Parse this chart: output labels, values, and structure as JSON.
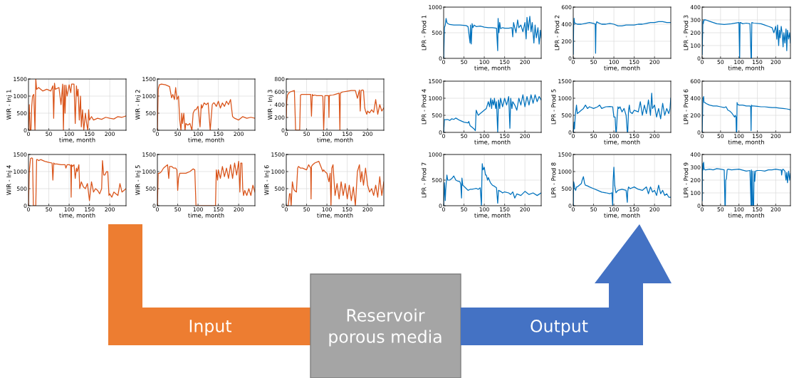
{
  "chart_data": [
    {
      "type": "line",
      "ylabel": "WIR - Inj 1",
      "xlabel": "time, month",
      "xlim": [
        0,
        240
      ],
      "xticks": [
        0,
        50,
        100,
        150,
        200
      ],
      "ylim": [
        0,
        1500
      ],
      "yticks": [
        0,
        500,
        1000,
        1500
      ],
      "grid": true,
      "x": [
        0,
        2,
        4,
        6,
        8,
        10,
        13,
        16,
        18,
        20,
        25,
        35,
        45,
        55,
        60,
        62,
        64,
        66,
        75,
        80,
        84,
        86,
        88,
        90,
        92,
        95,
        100,
        104,
        106,
        108,
        112,
        115,
        118,
        120,
        122,
        125,
        128,
        130,
        133,
        136,
        140,
        143,
        146,
        148,
        150,
        155,
        160,
        170,
        180,
        190,
        200,
        210,
        220,
        230,
        240
      ],
      "series": [
        {
          "color": "#d95319",
          "values": [
            0,
            750,
            0,
            0,
            700,
            1000,
            1050,
            0,
            1500,
            1200,
            1250,
            1150,
            1200,
            1150,
            1300,
            350,
            1380,
            1200,
            1250,
            750,
            1350,
            0,
            1320,
            500,
            1320,
            1000,
            1330,
            1100,
            1350,
            1350,
            1350,
            200,
            1300,
            1000,
            1200,
            300,
            1000,
            100,
            600,
            0,
            500,
            200,
            0,
            600,
            300,
            400,
            300,
            350,
            320,
            380,
            350,
            330,
            400,
            380,
            420
          ]
        }
      ]
    },
    {
      "type": "line",
      "ylabel": "WIR - Inj 2",
      "xlabel": "time, month",
      "xlim": [
        0,
        240
      ],
      "xticks": [
        0,
        50,
        100,
        150,
        200
      ],
      "ylim": [
        0,
        1500
      ],
      "yticks": [
        0,
        500,
        1000,
        1500
      ],
      "grid": true,
      "x": [
        0,
        2,
        5,
        10,
        20,
        30,
        35,
        38,
        42,
        45,
        48,
        52,
        55,
        58,
        60,
        62,
        65,
        68,
        70,
        75,
        80,
        85,
        88,
        90,
        92,
        95,
        100,
        105,
        108,
        110,
        115,
        120,
        125,
        130,
        135,
        138,
        140,
        145,
        150,
        155,
        160,
        165,
        170,
        175,
        180,
        185,
        190,
        200,
        210,
        220,
        230,
        240
      ],
      "series": [
        {
          "color": "#d95319",
          "values": [
            0,
            1200,
            1330,
            1350,
            1330,
            1280,
            950,
            1050,
            900,
            1250,
            900,
            1000,
            300,
            0,
            500,
            200,
            500,
            0,
            200,
            150,
            200,
            0,
            500,
            550,
            600,
            600,
            700,
            100,
            750,
            650,
            800,
            750,
            800,
            0,
            750,
            800,
            800,
            700,
            850,
            650,
            800,
            700,
            850,
            750,
            900,
            400,
            350,
            300,
            400,
            350,
            380,
            350
          ]
        }
      ]
    },
    {
      "type": "line",
      "ylabel": "WIR - Inj 3",
      "xlabel": "time, month",
      "xlim": [
        0,
        240
      ],
      "xticks": [
        0,
        50,
        100,
        150,
        200
      ],
      "ylim": [
        0,
        800
      ],
      "yticks": [
        0,
        200,
        400,
        600,
        800
      ],
      "grid": true,
      "x": [
        0,
        1,
        3,
        6,
        10,
        15,
        20,
        23,
        25,
        27,
        33,
        35,
        38,
        45,
        50,
        55,
        60,
        62,
        64,
        66,
        70,
        75,
        80,
        88,
        90,
        92,
        95,
        100,
        104,
        105,
        106,
        108,
        115,
        120,
        130,
        132,
        133,
        135,
        140,
        150,
        160,
        170,
        175,
        180,
        182,
        184,
        188,
        190,
        193,
        195,
        198,
        200,
        205,
        210,
        215,
        220,
        225,
        230,
        235,
        240
      ],
      "series": [
        {
          "color": "#d95319",
          "values": [
            200,
            450,
            550,
            580,
            600,
            610,
            620,
            0,
            0,
            0,
            0,
            550,
            560,
            560,
            560,
            560,
            560,
            220,
            560,
            540,
            550,
            540,
            540,
            540,
            530,
            0,
            540,
            540,
            540,
            200,
            540,
            545,
            550,
            560,
            580,
            0,
            570,
            590,
            600,
            610,
            620,
            620,
            500,
            630,
            300,
            620,
            630,
            620,
            350,
            300,
            250,
            300,
            270,
            320,
            280,
            480,
            250,
            400,
            300,
            350
          ]
        }
      ]
    },
    {
      "type": "line",
      "ylabel": "WIR - Inj 4",
      "xlabel": "time, month",
      "xlim": [
        0,
        240
      ],
      "xticks": [
        0,
        50,
        100,
        150,
        200
      ],
      "ylim": [
        0,
        1500
      ],
      "yticks": [
        0,
        500,
        1000,
        1500
      ],
      "grid": true,
      "x": [
        0,
        2,
        5,
        8,
        10,
        12,
        15,
        18,
        20,
        22,
        25,
        30,
        40,
        50,
        58,
        60,
        62,
        64,
        70,
        80,
        90,
        92,
        95,
        100,
        104,
        105,
        106,
        108,
        112,
        115,
        118,
        120,
        124,
        126,
        130,
        135,
        140,
        145,
        150,
        155,
        160,
        165,
        170,
        175,
        180,
        182,
        185,
        188,
        192,
        195,
        198,
        200,
        205,
        210,
        215,
        220,
        225,
        230,
        235,
        240
      ],
      "series": [
        {
          "color": "#d95319",
          "values": [
            0,
            1000,
            1380,
            1400,
            1380,
            0,
            0,
            0,
            1350,
            1350,
            1320,
            1350,
            1300,
            1270,
            1250,
            750,
            1250,
            1220,
            1220,
            1200,
            1200,
            1100,
            1200,
            1200,
            1180,
            250,
            1200,
            1150,
            1200,
            800,
            1100,
            1000,
            1200,
            500,
            700,
            550,
            500,
            650,
            150,
            700,
            400,
            500,
            450,
            350,
            500,
            1320,
            900,
            900,
            1000,
            1000,
            300,
            350,
            250,
            400,
            350,
            300,
            650,
            400,
            450,
            500
          ]
        }
      ]
    },
    {
      "type": "line",
      "ylabel": "WIR - Inj 5",
      "xlabel": "time, month",
      "xlim": [
        0,
        240
      ],
      "xticks": [
        0,
        50,
        100,
        150,
        200
      ],
      "ylim": [
        0,
        1500
      ],
      "yticks": [
        0,
        500,
        1000,
        1500
      ],
      "grid": true,
      "x": [
        0,
        2,
        5,
        10,
        15,
        20,
        25,
        28,
        30,
        35,
        40,
        45,
        48,
        50,
        52,
        55,
        60,
        70,
        80,
        88,
        92,
        95,
        100,
        120,
        140,
        143,
        145,
        148,
        150,
        155,
        160,
        165,
        170,
        175,
        180,
        185,
        190,
        195,
        200,
        203,
        205,
        208,
        210,
        212,
        215,
        220,
        225,
        230,
        235,
        240
      ],
      "series": [
        {
          "color": "#d95319",
          "values": [
            0,
            950,
            950,
            1000,
            1100,
            1150,
            1200,
            800,
            1150,
            1150,
            1100,
            1100,
            1050,
            450,
            800,
            950,
            950,
            950,
            1000,
            1080,
            1050,
            0,
            0,
            0,
            0,
            0,
            1050,
            750,
            1050,
            800,
            1150,
            850,
            1100,
            800,
            1200,
            800,
            1250,
            900,
            1300,
            400,
            1250,
            1250,
            500,
            300,
            450,
            300,
            500,
            300,
            600,
            400
          ]
        }
      ]
    },
    {
      "type": "line",
      "ylabel": "WIR - Inj 6",
      "xlabel": "time, month",
      "xlim": [
        0,
        240
      ],
      "xticks": [
        0,
        50,
        100,
        150,
        200
      ],
      "ylim": [
        0,
        1500
      ],
      "yticks": [
        0,
        500,
        1000,
        1500
      ],
      "grid": true,
      "x": [
        0,
        5,
        8,
        10,
        12,
        15,
        18,
        20,
        25,
        28,
        30,
        35,
        40,
        50,
        55,
        60,
        61,
        62,
        65,
        70,
        80,
        90,
        92,
        95,
        100,
        105,
        108,
        110,
        112,
        115,
        120,
        125,
        130,
        135,
        140,
        145,
        150,
        155,
        160,
        165,
        170,
        175,
        180,
        183,
        186,
        190,
        195,
        200,
        205,
        210,
        215,
        220,
        225,
        230,
        235,
        240
      ],
      "series": [
        {
          "color": "#d95319",
          "values": [
            0,
            0,
            350,
            350,
            0,
            700,
            500,
            450,
            400,
            1100,
            1150,
            1100,
            1100,
            1050,
            1200,
            1100,
            200,
            1150,
            1200,
            1250,
            1300,
            1000,
            1050,
            1000,
            950,
            700,
            950,
            0,
            1100,
            1200,
            300,
            650,
            200,
            700,
            300,
            650,
            200,
            600,
            150,
            550,
            0,
            1000,
            1200,
            700,
            1000,
            600,
            1100,
            600,
            400,
            500,
            300,
            600,
            250,
            850,
            300,
            700
          ]
        }
      ]
    },
    {
      "type": "line",
      "ylabel": "LPR - Prod 1",
      "xlabel": "time, month",
      "xlim": [
        0,
        240
      ],
      "xticks": [
        0,
        50,
        100,
        150,
        200
      ],
      "ylim": [
        0,
        1000
      ],
      "yticks": [
        0,
        500,
        1000
      ],
      "grid": true,
      "x": [
        0,
        2,
        4,
        6,
        8,
        10,
        15,
        25,
        40,
        55,
        60,
        65,
        66,
        68,
        70,
        72,
        75,
        80,
        90,
        100,
        110,
        120,
        130,
        133,
        134,
        136,
        138,
        140,
        145,
        150,
        160,
        168,
        170,
        172,
        178,
        182,
        185,
        190,
        195,
        200,
        203,
        205,
        208,
        212,
        215,
        218,
        222,
        225,
        228,
        232,
        235,
        238,
        240
      ],
      "series": [
        {
          "color": "#0072bd",
          "values": [
            0,
            600,
            650,
            780,
            700,
            680,
            660,
            650,
            650,
            640,
            620,
            300,
            650,
            280,
            680,
            600,
            650,
            620,
            630,
            610,
            600,
            600,
            590,
            150,
            780,
            500,
            700,
            580,
            600,
            590,
            590,
            600,
            420,
            700,
            500,
            750,
            600,
            650,
            520,
            700,
            380,
            800,
            550,
            820,
            520,
            700,
            300,
            650,
            400,
            600,
            280,
            550,
            400
          ]
        }
      ]
    },
    {
      "type": "line",
      "ylabel": "LPR - Prod 2",
      "xlabel": "time, month",
      "xlim": [
        0,
        240
      ],
      "xticks": [
        0,
        50,
        100,
        150,
        200
      ],
      "ylim": [
        0,
        600
      ],
      "yticks": [
        0,
        200,
        400,
        600
      ],
      "grid": true,
      "x": [
        0,
        1,
        2,
        3,
        5,
        10,
        20,
        30,
        40,
        50,
        54,
        55,
        56,
        58,
        60,
        70,
        80,
        90,
        100,
        110,
        120,
        130,
        140,
        150,
        160,
        170,
        180,
        190,
        200,
        210,
        220,
        230,
        240
      ],
      "series": [
        {
          "color": "#0072bd",
          "values": [
            50,
            380,
            470,
            420,
            410,
            400,
            400,
            410,
            420,
            410,
            400,
            60,
            400,
            430,
            420,
            400,
            400,
            410,
            400,
            380,
            380,
            390,
            390,
            390,
            400,
            400,
            410,
            420,
            420,
            430,
            430,
            420,
            420
          ]
        }
      ]
    },
    {
      "type": "line",
      "ylabel": "LPR - Prod 3",
      "xlabel": "time, month",
      "xlim": [
        0,
        240
      ],
      "xticks": [
        0,
        50,
        100,
        150,
        200
      ],
      "ylim": [
        0,
        400
      ],
      "yticks": [
        0,
        100,
        200,
        300,
        400
      ],
      "grid": true,
      "x": [
        0,
        2,
        3,
        5,
        10,
        20,
        30,
        40,
        60,
        80,
        100,
        102,
        103,
        104,
        110,
        120,
        130,
        133,
        134,
        135,
        140,
        160,
        170,
        180,
        190,
        195,
        200,
        203,
        205,
        208,
        210,
        212,
        215,
        218,
        220,
        222,
        225,
        228,
        230,
        232,
        235,
        238,
        240
      ],
      "series": [
        {
          "color": "#0072bd",
          "values": [
            30,
            290,
            270,
            300,
            300,
            290,
            280,
            270,
            265,
            270,
            280,
            0,
            280,
            280,
            270,
            275,
            270,
            0,
            0,
            280,
            275,
            270,
            260,
            250,
            240,
            200,
            250,
            150,
            260,
            100,
            220,
            160,
            250,
            180,
            90,
            200,
            120,
            230,
            60,
            220,
            150,
            200,
            120
          ]
        }
      ]
    },
    {
      "type": "line",
      "ylabel": "LPR - Prod 4",
      "xlabel": "time, month",
      "xlim": [
        0,
        240
      ],
      "xticks": [
        0,
        50,
        100,
        150,
        200
      ],
      "ylim": [
        0,
        1500
      ],
      "yticks": [
        0,
        500,
        1000,
        1500
      ],
      "grid": true,
      "x": [
        0,
        2,
        5,
        10,
        15,
        20,
        25,
        30,
        40,
        50,
        60,
        62,
        65,
        70,
        75,
        78,
        80,
        85,
        90,
        100,
        105,
        110,
        113,
        116,
        118,
        120,
        123,
        125,
        128,
        130,
        133,
        135,
        138,
        140,
        145,
        150,
        155,
        160,
        163,
        165,
        168,
        170,
        175,
        180,
        185,
        190,
        195,
        200,
        205,
        210,
        215,
        220,
        225,
        230,
        235,
        240
      ],
      "series": [
        {
          "color": "#0072bd",
          "values": [
            0,
            380,
            370,
            380,
            350,
            400,
            380,
            420,
            350,
            300,
            280,
            320,
            200,
            150,
            100,
            50,
            650,
            500,
            550,
            650,
            700,
            900,
            750,
            1000,
            700,
            950,
            800,
            1000,
            700,
            900,
            0,
            950,
            700,
            1000,
            750,
            1000,
            800,
            1050,
            120,
            1000,
            700,
            900,
            800,
            650,
            1000,
            800,
            1100,
            750,
            1050,
            800,
            1100,
            850,
            1100,
            900,
            1050,
            950
          ]
        }
      ]
    },
    {
      "type": "line",
      "ylabel": "LPR - Prod 5",
      "xlabel": "time, month",
      "xlim": [
        0,
        240
      ],
      "xticks": [
        0,
        50,
        100,
        150,
        200
      ],
      "ylim": [
        0,
        1500
      ],
      "yticks": [
        0,
        500,
        1000,
        1500
      ],
      "grid": true,
      "x": [
        0,
        2,
        3,
        5,
        8,
        10,
        15,
        20,
        25,
        30,
        35,
        40,
        50,
        60,
        65,
        70,
        80,
        90,
        97,
        100,
        103,
        105,
        106,
        108,
        110,
        112,
        115,
        120,
        125,
        130,
        133,
        134,
        136,
        138,
        140,
        145,
        150,
        160,
        165,
        170,
        175,
        180,
        185,
        190,
        193,
        195,
        200,
        205,
        210,
        215,
        220,
        225,
        230,
        235,
        238,
        240
      ],
      "series": [
        {
          "color": "#0072bd",
          "values": [
            0,
            300,
            100,
            500,
            800,
            550,
            600,
            650,
            700,
            800,
            700,
            750,
            700,
            750,
            800,
            700,
            750,
            760,
            750,
            450,
            450,
            0,
            0,
            450,
            750,
            700,
            750,
            600,
            700,
            500,
            0,
            0,
            650,
            800,
            600,
            550,
            650,
            600,
            900,
            500,
            800,
            550,
            950,
            500,
            1150,
            700,
            800,
            450,
            700,
            400,
            850,
            500,
            700,
            550,
            700,
            1000
          ]
        }
      ]
    },
    {
      "type": "line",
      "ylabel": "LPR - Prod 6",
      "xlabel": "time, month",
      "xlim": [
        0,
        240
      ],
      "xticks": [
        0,
        50,
        100,
        150,
        200
      ],
      "ylim": [
        0,
        600
      ],
      "yticks": [
        0,
        200,
        400,
        600
      ],
      "grid": true,
      "x": [
        0,
        2,
        3,
        4,
        5,
        8,
        10,
        20,
        30,
        40,
        50,
        60,
        65,
        70,
        75,
        80,
        85,
        88,
        90,
        92,
        93,
        94,
        95,
        96,
        100,
        110,
        120,
        130,
        132,
        133,
        134,
        136,
        140,
        150,
        160,
        170,
        180,
        190,
        200,
        210,
        220,
        230,
        240
      ],
      "series": [
        {
          "color": "#0072bd",
          "values": [
            0,
            380,
            400,
            420,
            350,
            350,
            340,
            320,
            310,
            310,
            300,
            290,
            300,
            260,
            250,
            230,
            200,
            180,
            200,
            180,
            0,
            0,
            350,
            330,
            320,
            320,
            310,
            310,
            300,
            20,
            320,
            310,
            310,
            305,
            300,
            300,
            295,
            290,
            290,
            285,
            280,
            275,
            265
          ]
        }
      ]
    },
    {
      "type": "line",
      "ylabel": "LPR - Prod 7",
      "xlabel": "time, month",
      "xlim": [
        0,
        240
      ],
      "xticks": [
        0,
        50,
        100,
        150,
        200
      ],
      "ylim": [
        0,
        1000
      ],
      "yticks": [
        0,
        500,
        1000
      ],
      "grid": true,
      "x": [
        0,
        2,
        4,
        5,
        8,
        10,
        15,
        20,
        25,
        30,
        35,
        40,
        42,
        44,
        45,
        47,
        50,
        55,
        60,
        65,
        70,
        75,
        80,
        85,
        90,
        93,
        94,
        95,
        97,
        100,
        103,
        105,
        108,
        110,
        115,
        120,
        125,
        130,
        133,
        135,
        140,
        145,
        150,
        160,
        165,
        170,
        175,
        180,
        190,
        200,
        210,
        220,
        230,
        240
      ],
      "series": [
        {
          "color": "#0072bd",
          "values": [
            0,
            450,
            100,
            300,
            600,
            500,
            500,
            530,
            580,
            500,
            480,
            470,
            420,
            150,
            540,
            400,
            380,
            340,
            300,
            320,
            320,
            330,
            340,
            320,
            350,
            0,
            500,
            820,
            700,
            750,
            600,
            600,
            500,
            550,
            450,
            400,
            380,
            350,
            50,
            300,
            280,
            250,
            270,
            250,
            220,
            270,
            150,
            230,
            200,
            280,
            220,
            250,
            200,
            250
          ]
        }
      ]
    },
    {
      "type": "line",
      "ylabel": "LPR - Prod 8",
      "xlabel": "time, month",
      "xlim": [
        0,
        240
      ],
      "xticks": [
        0,
        50,
        100,
        150,
        200
      ],
      "ylim": [
        0,
        1500
      ],
      "yticks": [
        0,
        500,
        1000,
        1500
      ],
      "grid": true,
      "x": [
        0,
        1,
        2,
        4,
        6,
        8,
        10,
        15,
        20,
        22,
        25,
        28,
        30,
        35,
        40,
        50,
        60,
        70,
        80,
        90,
        95,
        97,
        98,
        100,
        102,
        105,
        110,
        120,
        130,
        133,
        134,
        136,
        140,
        150,
        160,
        170,
        180,
        185,
        190,
        195,
        200,
        205,
        210,
        215,
        220,
        225,
        230,
        235,
        240
      ],
      "series": [
        {
          "color": "#0072bd",
          "values": [
            0,
            700,
            650,
            500,
            450,
            550,
            550,
            600,
            650,
            750,
            850,
            650,
            600,
            580,
            550,
            500,
            450,
            400,
            380,
            350,
            380,
            0,
            700,
            1130,
            600,
            380,
            450,
            480,
            450,
            100,
            420,
            550,
            500,
            550,
            480,
            450,
            550,
            350,
            550,
            400,
            450,
            300,
            600,
            350,
            450,
            300,
            350,
            250,
            250
          ]
        }
      ]
    },
    {
      "type": "line",
      "ylabel": "LPR - Prod 9",
      "xlabel": "time, month",
      "xlim": [
        0,
        240
      ],
      "xticks": [
        0,
        50,
        100,
        150,
        200
      ],
      "ylim": [
        0,
        400
      ],
      "yticks": [
        0,
        100,
        200,
        300,
        400
      ],
      "grid": true,
      "x": [
        0,
        1,
        2,
        3,
        4,
        5,
        8,
        10,
        20,
        30,
        40,
        50,
        60,
        62,
        63,
        64,
        66,
        68,
        70,
        80,
        100,
        120,
        130,
        133,
        134,
        135,
        136,
        138,
        140,
        141,
        143,
        145,
        150,
        160,
        170,
        180,
        190,
        200,
        210,
        215,
        216,
        218,
        220,
        225,
        228,
        230,
        232,
        235,
        238,
        240
      ],
      "series": [
        {
          "color": "#0072bd",
          "values": [
            40,
            300,
            330,
            280,
            340,
            290,
            280,
            280,
            285,
            280,
            290,
            285,
            280,
            0,
            0,
            200,
            210,
            280,
            285,
            280,
            285,
            270,
            275,
            0,
            280,
            0,
            270,
            0,
            0,
            270,
            190,
            270,
            275,
            275,
            270,
            280,
            280,
            285,
            280,
            280,
            240,
            280,
            285,
            270,
            200,
            260,
            180,
            270,
            200,
            250
          ]
        }
      ]
    },
    {
      "type": "other",
      "annotations": [
        "Input",
        "Reservoir\nporous media",
        "Output"
      ]
    }
  ]
}
